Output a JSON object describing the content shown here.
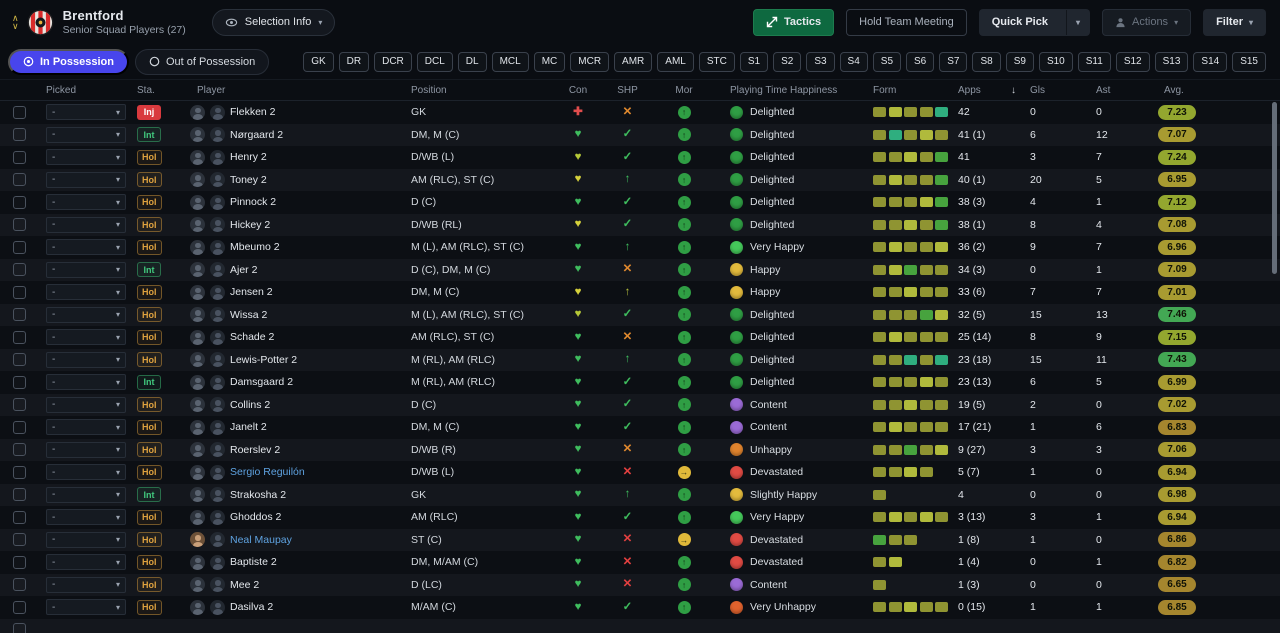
{
  "header": {
    "club": "Brentford",
    "subtitle": "Senior Squad Players (27)",
    "selection_info": "Selection Info",
    "tactics": "Tactics",
    "hold_team_meeting": "Hold Team Meeting",
    "quick_pick": "Quick Pick",
    "actions": "Actions",
    "filter": "Filter"
  },
  "tabs": {
    "in_possession": "In Possession",
    "out_of_possession": "Out of Possession"
  },
  "position_chips": [
    "GK",
    "DR",
    "DCR",
    "DCL",
    "DL",
    "MCL",
    "MC",
    "MCR",
    "AMR",
    "AML",
    "STC",
    "S1",
    "S2",
    "S3",
    "S4",
    "S5",
    "S6",
    "S7",
    "S8",
    "S9",
    "S10",
    "S11",
    "S12",
    "S13",
    "S14",
    "S15"
  ],
  "icons": {
    "heart": "♥",
    "medical": "✚",
    "check": "✓",
    "cross": "✕",
    "up": "↑",
    "right": "→",
    "chevron": "▾",
    "sort_desc": "↓"
  },
  "colors": {
    "accent": "#4845ec",
    "tactics_green": "#0e6940",
    "loan_blue": "#5ea2e0",
    "inj_red": "#d93a3e",
    "int_green": "#41c97d",
    "hol_orange": "#dfa23f"
  },
  "table": {
    "columns": [
      "Picked",
      "Sta.",
      "Player",
      "Position",
      "Con",
      "SHP",
      "Mor",
      "Playing Time Happiness",
      "Form",
      "Apps",
      "Gls",
      "Ast",
      "Avg."
    ],
    "sort": {
      "column": "Apps",
      "direction": "desc"
    },
    "players": [
      {
        "picked": "-",
        "sta": "Inj",
        "name": "Flekken 2",
        "loan": false,
        "photo": false,
        "pos": "GK",
        "con": {
          "i": "medical",
          "c": "#e24d4d"
        },
        "shp": {
          "i": "cross",
          "c": "#e0892e"
        },
        "mor": {
          "i": "up",
          "c": "#2f9e44"
        },
        "hap": {
          "label": "Delighted",
          "c": "#2f9e44"
        },
        "form": [
          "#8f9432",
          "#b0ba3c",
          "#8f9432",
          "#8f9432",
          "#2fae7f"
        ],
        "apps": "42",
        "gls": "0",
        "ast": "0",
        "avg": "7.23"
      },
      {
        "picked": "-",
        "sta": "Int",
        "name": "Nørgaard 2",
        "loan": false,
        "photo": false,
        "pos": "DM, M (C)",
        "con": {
          "i": "heart",
          "c": "#3fbd5e"
        },
        "shp": {
          "i": "check",
          "c": "#3fbd5e"
        },
        "mor": {
          "i": "up",
          "c": "#2f9e44"
        },
        "hap": {
          "label": "Delighted",
          "c": "#2f9e44"
        },
        "form": [
          "#8f9432",
          "#2fae7f",
          "#8f9432",
          "#b0ba3c",
          "#8f9432"
        ],
        "apps": "41 (1)",
        "gls": "6",
        "ast": "12",
        "avg": "7.07"
      },
      {
        "picked": "-",
        "sta": "Hol",
        "name": "Henry 2",
        "loan": false,
        "photo": false,
        "pos": "D/WB (L)",
        "con": {
          "i": "heart",
          "c": "#b6c938"
        },
        "shp": {
          "i": "check",
          "c": "#3fbd5e"
        },
        "mor": {
          "i": "up",
          "c": "#2f9e44"
        },
        "hap": {
          "label": "Delighted",
          "c": "#2f9e44"
        },
        "form": [
          "#8f9432",
          "#8f9432",
          "#b0ba3c",
          "#8f9432",
          "#47a33e"
        ],
        "apps": "41",
        "gls": "3",
        "ast": "7",
        "avg": "7.24"
      },
      {
        "picked": "-",
        "sta": "Hol",
        "name": "Toney 2",
        "loan": false,
        "photo": false,
        "pos": "AM (RLC), ST (C)",
        "con": {
          "i": "heart",
          "c": "#d6d23c"
        },
        "shp": {
          "i": "up",
          "c": "#3fbd5e"
        },
        "mor": {
          "i": "up",
          "c": "#2f9e44"
        },
        "hap": {
          "label": "Delighted",
          "c": "#2f9e44"
        },
        "form": [
          "#8f9432",
          "#b0ba3c",
          "#8f9432",
          "#8f9432",
          "#47a33e"
        ],
        "apps": "40 (1)",
        "gls": "20",
        "ast": "5",
        "avg": "6.95"
      },
      {
        "picked": "-",
        "sta": "Hol",
        "name": "Pinnock 2",
        "loan": false,
        "photo": false,
        "pos": "D (C)",
        "con": {
          "i": "heart",
          "c": "#3fbd5e"
        },
        "shp": {
          "i": "check",
          "c": "#3fbd5e"
        },
        "mor": {
          "i": "up",
          "c": "#2f9e44"
        },
        "hap": {
          "label": "Delighted",
          "c": "#2f9e44"
        },
        "form": [
          "#8f9432",
          "#8f9432",
          "#8f9432",
          "#b0ba3c",
          "#47a33e"
        ],
        "apps": "38 (3)",
        "gls": "4",
        "ast": "1",
        "avg": "7.12"
      },
      {
        "picked": "-",
        "sta": "Hol",
        "name": "Hickey 2",
        "loan": false,
        "photo": false,
        "pos": "D/WB (RL)",
        "con": {
          "i": "heart",
          "c": "#d6d23c"
        },
        "shp": {
          "i": "check",
          "c": "#3fbd5e"
        },
        "mor": {
          "i": "up",
          "c": "#2f9e44"
        },
        "hap": {
          "label": "Delighted",
          "c": "#2f9e44"
        },
        "form": [
          "#8f9432",
          "#8f9432",
          "#b0ba3c",
          "#8f9432",
          "#47a33e"
        ],
        "apps": "38 (1)",
        "gls": "8",
        "ast": "4",
        "avg": "7.08"
      },
      {
        "picked": "-",
        "sta": "Hol",
        "name": "Mbeumo 2",
        "loan": false,
        "photo": false,
        "pos": "M (L), AM (RLC), ST (C)",
        "con": {
          "i": "heart",
          "c": "#3fbd5e"
        },
        "shp": {
          "i": "up",
          "c": "#3fbd5e"
        },
        "mor": {
          "i": "up",
          "c": "#2f9e44"
        },
        "hap": {
          "label": "Very Happy",
          "c": "#45c95b"
        },
        "form": [
          "#8f9432",
          "#b0ba3c",
          "#8f9432",
          "#8f9432",
          "#b0ba3c"
        ],
        "apps": "36 (2)",
        "gls": "9",
        "ast": "7",
        "avg": "6.96"
      },
      {
        "picked": "-",
        "sta": "Int",
        "name": "Ajer 2",
        "loan": false,
        "photo": false,
        "pos": "D (C), DM, M (C)",
        "con": {
          "i": "heart",
          "c": "#3fbd5e"
        },
        "shp": {
          "i": "cross",
          "c": "#e0892e"
        },
        "mor": {
          "i": "up",
          "c": "#2f9e44"
        },
        "hap": {
          "label": "Happy",
          "c": "#e3bb3d"
        },
        "form": [
          "#8f9432",
          "#b0ba3c",
          "#47a33e",
          "#8f9432",
          "#8f9432"
        ],
        "apps": "34 (3)",
        "gls": "0",
        "ast": "1",
        "avg": "7.09"
      },
      {
        "picked": "-",
        "sta": "Hol",
        "name": "Jensen 2",
        "loan": false,
        "photo": false,
        "pos": "DM, M (C)",
        "con": {
          "i": "heart",
          "c": "#d6d23c"
        },
        "shp": {
          "i": "up",
          "c": "#b4bd3c"
        },
        "mor": {
          "i": "up",
          "c": "#2f9e44"
        },
        "hap": {
          "label": "Happy",
          "c": "#e3bb3d"
        },
        "form": [
          "#8f9432",
          "#8f9432",
          "#b0ba3c",
          "#8f9432",
          "#8f9432"
        ],
        "apps": "33 (6)",
        "gls": "7",
        "ast": "7",
        "avg": "7.01"
      },
      {
        "picked": "-",
        "sta": "Hol",
        "name": "Wissa 2",
        "loan": false,
        "photo": false,
        "pos": "M (L), AM (RLC), ST (C)",
        "con": {
          "i": "heart",
          "c": "#b6c938"
        },
        "shp": {
          "i": "check",
          "c": "#3fbd5e"
        },
        "mor": {
          "i": "up",
          "c": "#2f9e44"
        },
        "hap": {
          "label": "Delighted",
          "c": "#2f9e44"
        },
        "form": [
          "#8f9432",
          "#8f9432",
          "#8f9432",
          "#47a33e",
          "#b0ba3c"
        ],
        "apps": "32 (5)",
        "gls": "15",
        "ast": "13",
        "avg": "7.46"
      },
      {
        "picked": "-",
        "sta": "Hol",
        "name": "Schade 2",
        "loan": false,
        "photo": false,
        "pos": "AM (RLC), ST (C)",
        "con": {
          "i": "heart",
          "c": "#3fbd5e"
        },
        "shp": {
          "i": "cross",
          "c": "#e0892e"
        },
        "mor": {
          "i": "up",
          "c": "#2f9e44"
        },
        "hap": {
          "label": "Delighted",
          "c": "#2f9e44"
        },
        "form": [
          "#8f9432",
          "#b0ba3c",
          "#8f9432",
          "#8f9432",
          "#8f9432"
        ],
        "apps": "25 (14)",
        "gls": "8",
        "ast": "9",
        "avg": "7.15"
      },
      {
        "picked": "-",
        "sta": "Hol",
        "name": "Lewis-Potter 2",
        "loan": false,
        "photo": false,
        "pos": "M (RL), AM (RLC)",
        "con": {
          "i": "heart",
          "c": "#3fbd5e"
        },
        "shp": {
          "i": "up",
          "c": "#3fbd5e"
        },
        "mor": {
          "i": "up",
          "c": "#2f9e44"
        },
        "hap": {
          "label": "Delighted",
          "c": "#2f9e44"
        },
        "form": [
          "#8f9432",
          "#8f9432",
          "#2fae7f",
          "#8f9432",
          "#2fae7f"
        ],
        "apps": "23 (18)",
        "gls": "15",
        "ast": "11",
        "avg": "7.43"
      },
      {
        "picked": "-",
        "sta": "Int",
        "name": "Damsgaard 2",
        "loan": false,
        "photo": false,
        "pos": "M (RL), AM (RLC)",
        "con": {
          "i": "heart",
          "c": "#3fbd5e"
        },
        "shp": {
          "i": "check",
          "c": "#3fbd5e"
        },
        "mor": {
          "i": "up",
          "c": "#2f9e44"
        },
        "hap": {
          "label": "Delighted",
          "c": "#2f9e44"
        },
        "form": [
          "#8f9432",
          "#8f9432",
          "#8f9432",
          "#b0ba3c",
          "#8f9432"
        ],
        "apps": "23 (13)",
        "gls": "6",
        "ast": "5",
        "avg": "6.99"
      },
      {
        "picked": "-",
        "sta": "Hol",
        "name": "Collins 2",
        "loan": false,
        "photo": false,
        "pos": "D (C)",
        "con": {
          "i": "heart",
          "c": "#3fbd5e"
        },
        "shp": {
          "i": "check",
          "c": "#3fbd5e"
        },
        "mor": {
          "i": "up",
          "c": "#2f9e44"
        },
        "hap": {
          "label": "Content",
          "c": "#9b6bd6"
        },
        "form": [
          "#8f9432",
          "#8f9432",
          "#b0ba3c",
          "#8f9432",
          "#8f9432"
        ],
        "apps": "19 (5)",
        "gls": "2",
        "ast": "0",
        "avg": "7.02"
      },
      {
        "picked": "-",
        "sta": "Hol",
        "name": "Janelt 2",
        "loan": false,
        "photo": false,
        "pos": "DM, M (C)",
        "con": {
          "i": "heart",
          "c": "#3fbd5e"
        },
        "shp": {
          "i": "check",
          "c": "#3fbd5e"
        },
        "mor": {
          "i": "up",
          "c": "#2f9e44"
        },
        "hap": {
          "label": "Content",
          "c": "#9b6bd6"
        },
        "form": [
          "#8f9432",
          "#b0ba3c",
          "#8f9432",
          "#8f9432",
          "#8f9432"
        ],
        "apps": "17 (21)",
        "gls": "1",
        "ast": "6",
        "avg": "6.83"
      },
      {
        "picked": "-",
        "sta": "Hol",
        "name": "Roerslev 2",
        "loan": false,
        "photo": false,
        "pos": "D/WB (R)",
        "con": {
          "i": "heart",
          "c": "#3fbd5e"
        },
        "shp": {
          "i": "cross",
          "c": "#e0892e"
        },
        "mor": {
          "i": "up",
          "c": "#2f9e44"
        },
        "hap": {
          "label": "Unhappy",
          "c": "#e0842e"
        },
        "form": [
          "#8f9432",
          "#8f9432",
          "#47a33e",
          "#8f9432",
          "#b0ba3c"
        ],
        "apps": "9 (27)",
        "gls": "3",
        "ast": "3",
        "avg": "7.06"
      },
      {
        "picked": "-",
        "sta": "Hol",
        "name": "Sergio Reguilón",
        "loan": true,
        "photo": false,
        "pos": "D/WB (L)",
        "con": {
          "i": "heart",
          "c": "#3fbd5e"
        },
        "shp": {
          "i": "cross",
          "c": "#e34040"
        },
        "mor": {
          "i": "right",
          "c": "#e0b93a"
        },
        "hap": {
          "label": "Devastated",
          "c": "#e04b44"
        },
        "form": [
          "#8f9432",
          "#8f9432",
          "#b0ba3c",
          "#8f9432"
        ],
        "apps": "5 (7)",
        "gls": "1",
        "ast": "0",
        "avg": "6.94"
      },
      {
        "picked": "-",
        "sta": "Int",
        "name": "Strakosha 2",
        "loan": false,
        "photo": false,
        "pos": "GK",
        "con": {
          "i": "heart",
          "c": "#3fbd5e"
        },
        "shp": {
          "i": "up",
          "c": "#3fbd5e"
        },
        "mor": {
          "i": "up",
          "c": "#2f9e44"
        },
        "hap": {
          "label": "Slightly Happy",
          "c": "#e3bb3d"
        },
        "form": [
          "#8f9432"
        ],
        "apps": "4",
        "gls": "0",
        "ast": "0",
        "avg": "6.98"
      },
      {
        "picked": "-",
        "sta": "Hol",
        "name": "Ghoddos 2",
        "loan": false,
        "photo": false,
        "pos": "AM (RLC)",
        "con": {
          "i": "heart",
          "c": "#3fbd5e"
        },
        "shp": {
          "i": "check",
          "c": "#3fbd5e"
        },
        "mor": {
          "i": "up",
          "c": "#2f9e44"
        },
        "hap": {
          "label": "Very Happy",
          "c": "#45c95b"
        },
        "form": [
          "#8f9432",
          "#b0ba3c",
          "#8f9432",
          "#b0ba3c",
          "#8f9432"
        ],
        "apps": "3 (13)",
        "gls": "3",
        "ast": "1",
        "avg": "6.94"
      },
      {
        "picked": "-",
        "sta": "Hol",
        "name": "Neal Maupay",
        "loan": true,
        "photo": true,
        "pos": "ST (C)",
        "con": {
          "i": "heart",
          "c": "#3fbd5e"
        },
        "shp": {
          "i": "cross",
          "c": "#e34040"
        },
        "mor": {
          "i": "right",
          "c": "#e0b93a"
        },
        "hap": {
          "label": "Devastated",
          "c": "#e04b44"
        },
        "form": [
          "#47a33e",
          "#8f9432",
          "#8f9432"
        ],
        "apps": "1 (8)",
        "gls": "1",
        "ast": "0",
        "avg": "6.86"
      },
      {
        "picked": "-",
        "sta": "Hol",
        "name": "Baptiste 2",
        "loan": false,
        "photo": false,
        "pos": "DM, M/AM (C)",
        "con": {
          "i": "heart",
          "c": "#3fbd5e"
        },
        "shp": {
          "i": "cross",
          "c": "#e34040"
        },
        "mor": {
          "i": "up",
          "c": "#2f9e44"
        },
        "hap": {
          "label": "Devastated",
          "c": "#e04b44"
        },
        "form": [
          "#8f9432",
          "#b0ba3c"
        ],
        "apps": "1 (4)",
        "gls": "0",
        "ast": "1",
        "avg": "6.82"
      },
      {
        "picked": "-",
        "sta": "Hol",
        "name": "Mee 2",
        "loan": false,
        "photo": false,
        "pos": "D (LC)",
        "con": {
          "i": "heart",
          "c": "#3fbd5e"
        },
        "shp": {
          "i": "cross",
          "c": "#e34040"
        },
        "mor": {
          "i": "up",
          "c": "#2f9e44"
        },
        "hap": {
          "label": "Content",
          "c": "#9b6bd6"
        },
        "form": [
          "#8f9432"
        ],
        "apps": "1 (3)",
        "gls": "0",
        "ast": "0",
        "avg": "6.65"
      },
      {
        "picked": "-",
        "sta": "Hol",
        "name": "Dasilva 2",
        "loan": false,
        "photo": false,
        "pos": "M/AM (C)",
        "con": {
          "i": "heart",
          "c": "#3fbd5e"
        },
        "shp": {
          "i": "check",
          "c": "#3fbd5e"
        },
        "mor": {
          "i": "up",
          "c": "#2f9e44"
        },
        "hap": {
          "label": "Very Unhappy",
          "c": "#e0632e"
        },
        "form": [
          "#8f9432",
          "#8f9432",
          "#b0ba3c",
          "#8f9432",
          "#8f9432"
        ],
        "apps": "0 (15)",
        "gls": "1",
        "ast": "1",
        "avg": "6.85"
      }
    ]
  }
}
